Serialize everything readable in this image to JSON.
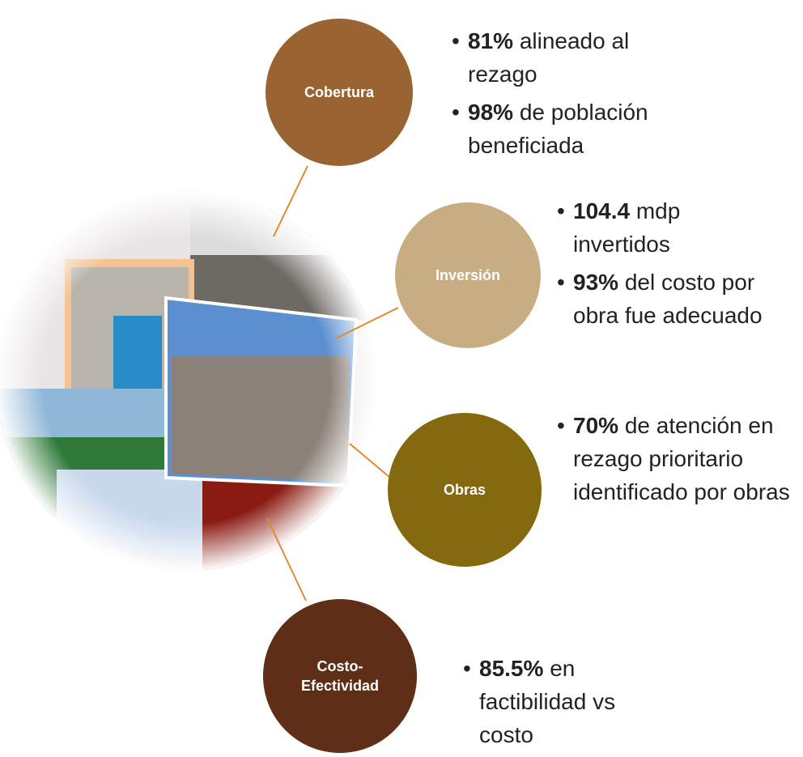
{
  "nodes": [
    {
      "label": "Cobertura",
      "items": [
        {
          "bold": "81%",
          "text": "alineado al rezago"
        },
        {
          "bold": "98%",
          "text": "de población beneficiada"
        }
      ]
    },
    {
      "label": "Inversión",
      "items": [
        {
          "bold": "104.4",
          "text": "mdp invertidos"
        },
        {
          "bold": "93%",
          "text": "del costo por obra fue adecuado"
        }
      ]
    },
    {
      "label": "Obras",
      "items": [
        {
          "bold": "70%",
          "text": "de atención en rezago prioritario identificado  por obras"
        }
      ]
    },
    {
      "label": "Costo-Efectividad",
      "items": [
        {
          "bold": "85.5%",
          "text": "en factibilidad vs costo"
        }
      ]
    }
  ]
}
